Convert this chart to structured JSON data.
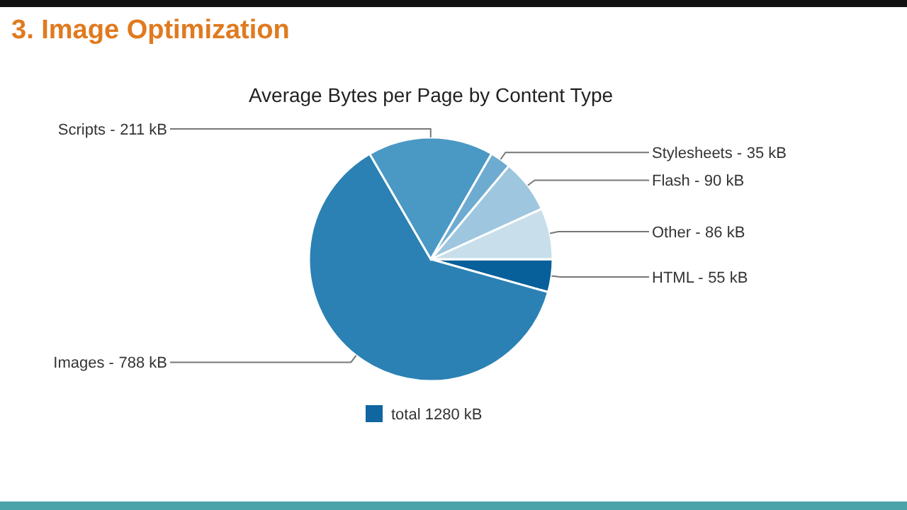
{
  "chart_data": {
    "type": "pie",
    "title": "3. Image Optimization",
    "subtitle": "Average Bytes per Page by Content Type",
    "categories": [
      "HTML -",
      "Images -",
      "Scripts -",
      "Stylesheets -",
      "Flash -",
      "Other -"
    ],
    "colors": [
      "#07609a",
      "#2b81b3",
      "#4a98c4",
      "#6eabd0",
      "#9ec6df",
      "#c8dfeb"
    ],
    "series": [
      {
        "name": "total 1280 kB",
        "color": "#0f66a0",
        "values": [
          55,
          788,
          211,
          35,
          90,
          86
        ],
        "value_labels": [
          "55 kB",
          "788 kB",
          "211 kB",
          "35 kB",
          "90 kB",
          "86 kB"
        ]
      }
    ],
    "legend": "bottom"
  }
}
